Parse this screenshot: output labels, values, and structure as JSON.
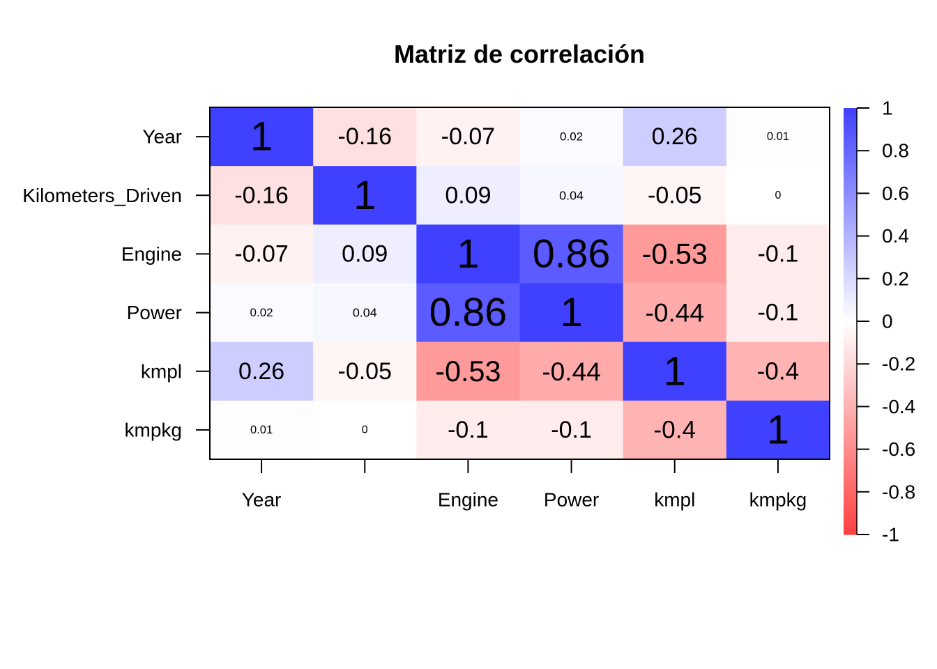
{
  "chart_data": {
    "type": "heatmap",
    "title": "Matriz de correlación",
    "row_labels": [
      "Year",
      "Kilometers_Driven",
      "Engine",
      "Power",
      "kmpl",
      "kmpkg"
    ],
    "col_labels": [
      "Year",
      "",
      "Engine",
      "Power",
      "kmpl",
      "kmpkg"
    ],
    "values": [
      [
        1,
        -0.16,
        -0.07,
        0.02,
        0.26,
        0.01
      ],
      [
        -0.16,
        1,
        0.09,
        0.04,
        -0.05,
        0
      ],
      [
        -0.07,
        0.09,
        1,
        0.86,
        -0.53,
        -0.1
      ],
      [
        0.02,
        0.04,
        0.86,
        1,
        -0.44,
        -0.1
      ],
      [
        0.26,
        -0.05,
        -0.53,
        -0.44,
        1,
        -0.4
      ],
      [
        0.01,
        0,
        -0.1,
        -0.1,
        -0.4,
        1
      ]
    ],
    "zlim": [
      -1,
      1
    ],
    "colorbar": {
      "ticks": [
        1,
        0.8,
        0.6,
        0.4,
        0.2,
        0,
        -0.2,
        -0.4,
        -0.6,
        -0.8,
        -1
      ],
      "positive_color": "#4040ff",
      "negative_color": "#ff4040",
      "zero_color": "#ffffff"
    }
  }
}
